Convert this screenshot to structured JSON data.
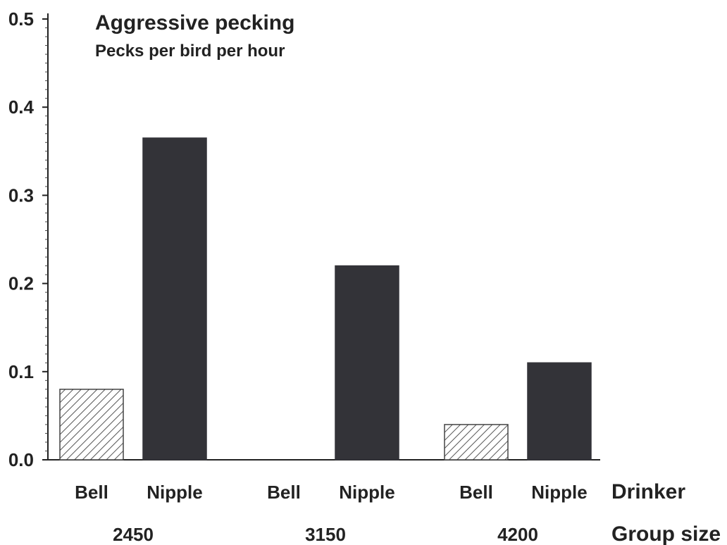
{
  "chart_data": {
    "type": "bar",
    "title": "Aggressive pecking",
    "subtitle": "Pecks per bird per hour",
    "ylim": [
      0,
      0.5
    ],
    "yticks": [
      "0.0",
      "0.1",
      "0.2",
      "0.3",
      "0.4",
      "0.5"
    ],
    "x_level1_caption": "Drinker",
    "x_level2_caption": "Group size",
    "groups": [
      {
        "label": "2450",
        "bars": [
          {
            "drinker": "Bell",
            "value": 0.08
          },
          {
            "drinker": "Nipple",
            "value": 0.365
          }
        ]
      },
      {
        "label": "3150",
        "bars": [
          {
            "drinker": "Bell",
            "value": 0.0
          },
          {
            "drinker": "Nipple",
            "value": 0.22
          }
        ]
      },
      {
        "label": "4200",
        "bars": [
          {
            "drinker": "Bell",
            "value": 0.04
          },
          {
            "drinker": "Nipple",
            "value": 0.11
          }
        ]
      }
    ],
    "styles": {
      "Bell": {
        "fill": "hatched",
        "color": "#555555"
      },
      "Nipple": {
        "fill": "solid",
        "color": "#333338"
      }
    },
    "grid": false,
    "legend": "none"
  }
}
